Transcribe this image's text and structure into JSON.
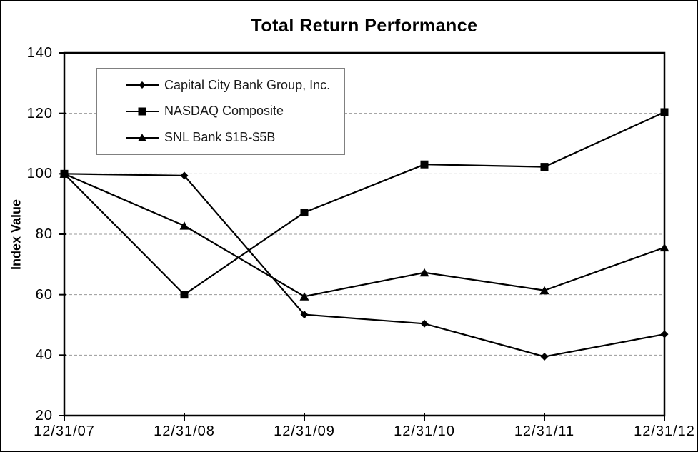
{
  "title": "Total Return Performance",
  "y_axis_title": "Index Value",
  "colors": {
    "series": "#000000",
    "gridline": "#999999",
    "axis": "#000000",
    "legend_border": "#808080",
    "text": "#000000"
  },
  "chart_data": {
    "type": "line",
    "title": "Total Return Performance",
    "xlabel": "",
    "ylabel": "Index Value",
    "ylim": [
      20,
      140
    ],
    "y_ticks": [
      140,
      120,
      100,
      80,
      60,
      40,
      20
    ],
    "y_gridlines": [
      120,
      100,
      80,
      60,
      40
    ],
    "grid": "horizontal-dashed",
    "legend_position": "upper-left-inside",
    "categories": [
      "12/31/07",
      "12/31/08",
      "12/31/09",
      "12/31/10",
      "12/31/11",
      "12/31/12"
    ],
    "series": [
      {
        "name": "Capital City Bank Group, Inc.",
        "marker": "diamond",
        "color": "#000000",
        "values": [
          100,
          99.4,
          53.4,
          50.4,
          39.5,
          46.9
        ]
      },
      {
        "name": "NASDAQ Composite",
        "marker": "square",
        "color": "#000000",
        "values": [
          100,
          60.0,
          87.2,
          103.1,
          102.3,
          120.4
        ]
      },
      {
        "name": "SNL Bank $1B-$5B",
        "marker": "triangle",
        "color": "#000000",
        "values": [
          100,
          82.8,
          59.4,
          67.3,
          61.4,
          75.6
        ]
      }
    ]
  }
}
